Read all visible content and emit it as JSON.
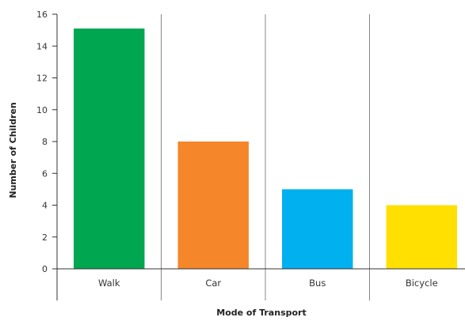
{
  "chart_data": {
    "type": "bar",
    "title": "",
    "xlabel": "Mode of Transport",
    "ylabel": "Number of Children",
    "categories": [
      "Walk",
      "Car",
      "Bus",
      "Bicycle"
    ],
    "values": [
      15.1,
      8,
      5,
      4
    ],
    "colors": [
      "#00a650",
      "#f5862a",
      "#00b0ef",
      "#ffe000"
    ],
    "ylim": [
      0,
      16
    ],
    "yticks": [
      0,
      2,
      4,
      6,
      8,
      10,
      12,
      14,
      16
    ],
    "grid": "vertical",
    "legend": "none"
  }
}
